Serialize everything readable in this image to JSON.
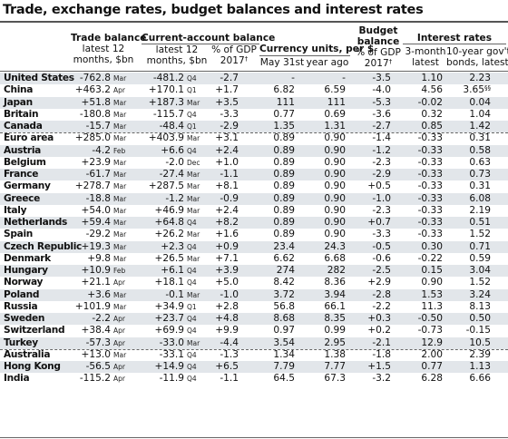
{
  "title": "Trade, exchange rates, budget balances and interest rates",
  "headers": {
    "trade_balance": "Trade balance",
    "trade_sub1": "latest 12",
    "trade_sub2": "months, $bn",
    "current_account": "Current-account balance",
    "ca_sub1a": "latest 12",
    "ca_sub1b": "months, $bn",
    "ca_sub2a": "% of GDP",
    "ca_sub2b": "2017",
    "currency": "Currency units, per $",
    "cur_sub1": "May 31st",
    "cur_sub2": "year ago",
    "budget_1": "Budget",
    "budget_2": "balance",
    "budget_3": "% of GDP",
    "budget_4": "2017",
    "interest": "Interest rates",
    "int_sub1a": "3-month",
    "int_sub1b": "latest",
    "int_sub2a": "10-year gov't",
    "int_sub2b": "bonds, latest",
    "dagger": "†"
  },
  "rows": [
    {
      "name": "United States",
      "trade": "-762.8",
      "trade_m": "Mar",
      "ca": "-481.2",
      "ca_m": "Q4",
      "ca_gdp": "-2.7",
      "cur": "-",
      "cur_ago": "-",
      "budget": "-3.5",
      "r3m": "1.10",
      "r10y": "2.23",
      "r10y_n": ""
    },
    {
      "name": "China",
      "trade": "+463.2",
      "trade_m": "Apr",
      "ca": "+170.1",
      "ca_m": "Q1",
      "ca_gdp": "+1.7",
      "cur": "6.82",
      "cur_ago": "6.59",
      "budget": "-4.0",
      "r3m": "4.56",
      "r10y": "3.65",
      "r10y_n": "§§"
    },
    {
      "name": "Japan",
      "trade": "+51.8",
      "trade_m": "Mar",
      "ca": "+187.3",
      "ca_m": "Mar",
      "ca_gdp": "+3.5",
      "cur": "111",
      "cur_ago": "111",
      "budget": "-5.3",
      "r3m": "-0.02",
      "r10y": "0.04",
      "r10y_n": ""
    },
    {
      "name": "Britain",
      "trade": "-180.8",
      "trade_m": "Mar",
      "ca": "-115.7",
      "ca_m": "Q4",
      "ca_gdp": "-3.3",
      "cur": "0.77",
      "cur_ago": "0.69",
      "budget": "-3.6",
      "r3m": "0.32",
      "r10y": "1.04",
      "r10y_n": ""
    },
    {
      "name": "Canada",
      "trade": "-15.7",
      "trade_m": "Mar",
      "ca": "-48.4",
      "ca_m": "Q1",
      "ca_gdp": "-2.9",
      "cur": "1.35",
      "cur_ago": "1.31",
      "budget": "-2.7",
      "r3m": "0.85",
      "r10y": "1.42",
      "r10y_n": ""
    },
    {
      "name": "Euro area",
      "trade": "+285.0",
      "trade_m": "Mar",
      "ca": "+403.9",
      "ca_m": "Mar",
      "ca_gdp": "+3.1",
      "cur": "0.89",
      "cur_ago": "0.90",
      "budget": "-1.4",
      "r3m": "-0.33",
      "r10y": "0.31",
      "r10y_n": ""
    },
    {
      "name": "Austria",
      "trade": "-4.2",
      "trade_m": "Feb",
      "ca": "+6.6",
      "ca_m": "Q4",
      "ca_gdp": "+2.4",
      "cur": "0.89",
      "cur_ago": "0.90",
      "budget": "-1.2",
      "r3m": "-0.33",
      "r10y": "0.58",
      "r10y_n": ""
    },
    {
      "name": "Belgium",
      "trade": "+23.9",
      "trade_m": "Mar",
      "ca": "-2.0",
      "ca_m": "Dec",
      "ca_gdp": "+1.0",
      "cur": "0.89",
      "cur_ago": "0.90",
      "budget": "-2.3",
      "r3m": "-0.33",
      "r10y": "0.63",
      "r10y_n": ""
    },
    {
      "name": "France",
      "trade": "-61.7",
      "trade_m": "Mar",
      "ca": "-27.4",
      "ca_m": "Mar",
      "ca_gdp": "-1.1",
      "cur": "0.89",
      "cur_ago": "0.90",
      "budget": "-2.9",
      "r3m": "-0.33",
      "r10y": "0.73",
      "r10y_n": ""
    },
    {
      "name": "Germany",
      "trade": "+278.7",
      "trade_m": "Mar",
      "ca": "+287.5",
      "ca_m": "Mar",
      "ca_gdp": "+8.1",
      "cur": "0.89",
      "cur_ago": "0.90",
      "budget": "+0.5",
      "r3m": "-0.33",
      "r10y": "0.31",
      "r10y_n": ""
    },
    {
      "name": "Greece",
      "trade": "-18.8",
      "trade_m": "Mar",
      "ca": "-1.2",
      "ca_m": "Mar",
      "ca_gdp": "-0.9",
      "cur": "0.89",
      "cur_ago": "0.90",
      "budget": "-1.0",
      "r3m": "-0.33",
      "r10y": "6.08",
      "r10y_n": ""
    },
    {
      "name": "Italy",
      "trade": "+54.0",
      "trade_m": "Mar",
      "ca": "+46.9",
      "ca_m": "Mar",
      "ca_gdp": "+2.4",
      "cur": "0.89",
      "cur_ago": "0.90",
      "budget": "-2.3",
      "r3m": "-0.33",
      "r10y": "2.19",
      "r10y_n": ""
    },
    {
      "name": "Netherlands",
      "trade": "+59.4",
      "trade_m": "Mar",
      "ca": "+64.8",
      "ca_m": "Q4",
      "ca_gdp": "+8.2",
      "cur": "0.89",
      "cur_ago": "0.90",
      "budget": "+0.7",
      "r3m": "-0.33",
      "r10y": "0.51",
      "r10y_n": ""
    },
    {
      "name": "Spain",
      "trade": "-29.2",
      "trade_m": "Mar",
      "ca": "+26.2",
      "ca_m": "Mar",
      "ca_gdp": "+1.6",
      "cur": "0.89",
      "cur_ago": "0.90",
      "budget": "-3.3",
      "r3m": "-0.33",
      "r10y": "1.52",
      "r10y_n": ""
    },
    {
      "name": "Czech Republic",
      "trade": "+19.3",
      "trade_m": "Mar",
      "ca": "+2.3",
      "ca_m": "Q4",
      "ca_gdp": "+0.9",
      "cur": "23.4",
      "cur_ago": "24.3",
      "budget": "-0.5",
      "r3m": "0.30",
      "r10y": "0.71",
      "r10y_n": ""
    },
    {
      "name": "Denmark",
      "trade": "+9.8",
      "trade_m": "Mar",
      "ca": "+26.5",
      "ca_m": "Mar",
      "ca_gdp": "+7.1",
      "cur": "6.62",
      "cur_ago": "6.68",
      "budget": "-0.6",
      "r3m": "-0.22",
      "r10y": "0.59",
      "r10y_n": ""
    },
    {
      "name": "Hungary",
      "trade": "+10.9",
      "trade_m": "Feb",
      "ca": "+6.1",
      "ca_m": "Q4",
      "ca_gdp": "+3.9",
      "cur": "274",
      "cur_ago": "282",
      "budget": "-2.5",
      "r3m": "0.15",
      "r10y": "3.04",
      "r10y_n": ""
    },
    {
      "name": "Norway",
      "trade": "+21.1",
      "trade_m": "Apr",
      "ca": "+18.1",
      "ca_m": "Q4",
      "ca_gdp": "+5.0",
      "cur": "8.42",
      "cur_ago": "8.36",
      "budget": "+2.9",
      "r3m": "0.90",
      "r10y": "1.52",
      "r10y_n": ""
    },
    {
      "name": "Poland",
      "trade": "+3.6",
      "trade_m": "Mar",
      "ca": "-0.1",
      "ca_m": "Mar",
      "ca_gdp": "-1.0",
      "cur": "3.72",
      "cur_ago": "3.94",
      "budget": "-2.8",
      "r3m": "1.53",
      "r10y": "3.24",
      "r10y_n": ""
    },
    {
      "name": "Russia",
      "trade": "+101.9",
      "trade_m": "Mar",
      "ca": "+34.9",
      "ca_m": "Q1",
      "ca_gdp": "+2.8",
      "cur": "56.8",
      "cur_ago": "66.1",
      "budget": "-2.2",
      "r3m": "11.3",
      "r10y": "8.13",
      "r10y_n": ""
    },
    {
      "name": "Sweden",
      "trade": "-2.2",
      "trade_m": "Apr",
      "ca": "+23.7",
      "ca_m": "Q4",
      "ca_gdp": "+4.8",
      "cur": "8.68",
      "cur_ago": "8.35",
      "budget": "+0.3",
      "r3m": "-0.50",
      "r10y": "0.50",
      "r10y_n": ""
    },
    {
      "name": "Switzerland",
      "trade": "+38.4",
      "trade_m": "Apr",
      "ca": "+69.9",
      "ca_m": "Q4",
      "ca_gdp": "+9.9",
      "cur": "0.97",
      "cur_ago": "0.99",
      "budget": "+0.2",
      "r3m": "-0.73",
      "r10y": "-0.15",
      "r10y_n": ""
    },
    {
      "name": "Turkey",
      "trade": "-57.3",
      "trade_m": "Apr",
      "ca": "-33.0",
      "ca_m": "Mar",
      "ca_gdp": "-4.4",
      "cur": "3.54",
      "cur_ago": "2.95",
      "budget": "-2.1",
      "r3m": "12.9",
      "r10y": "10.5",
      "r10y_n": ""
    },
    {
      "name": "Australia",
      "trade": "+13.0",
      "trade_m": "Mar",
      "ca": "-33.1",
      "ca_m": "Q4",
      "ca_gdp": "-1.3",
      "cur": "1.34",
      "cur_ago": "1.38",
      "budget": "-1.8",
      "r3m": "2.00",
      "r10y": "2.39",
      "r10y_n": ""
    },
    {
      "name": "Hong Kong",
      "trade": "-56.5",
      "trade_m": "Apr",
      "ca": "+14.9",
      "ca_m": "Q4",
      "ca_gdp": "+6.5",
      "cur": "7.79",
      "cur_ago": "7.77",
      "budget": "+1.5",
      "r3m": "0.77",
      "r10y": "1.13",
      "r10y_n": ""
    },
    {
      "name": "India",
      "trade": "-115.2",
      "trade_m": "Apr",
      "ca": "-11.9",
      "ca_m": "Q4",
      "ca_gdp": "-1.1",
      "cur": "64.5",
      "cur_ago": "67.3",
      "budget": "-3.2",
      "r3m": "6.28",
      "r10y": "6.66",
      "r10y_n": ""
    }
  ]
}
